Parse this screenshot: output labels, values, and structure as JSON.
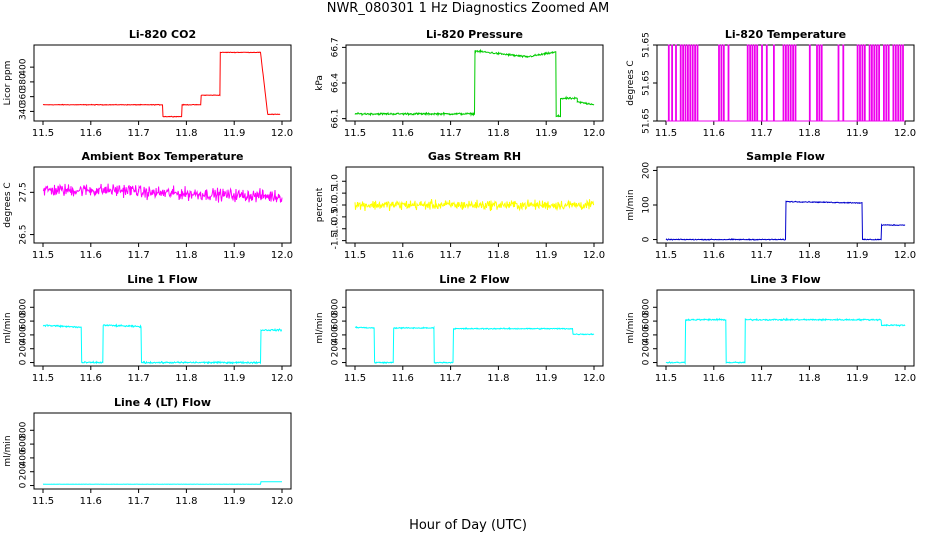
{
  "title": "NWR_080301  1 Hz Diagnostics Zoomed AM",
  "xlabel": "Hour of Day (UTC)",
  "chart_data": [
    {
      "type": "line",
      "title": "Li-820 CO2",
      "ylabel": "Licor ppm",
      "color": "#ff0000",
      "xlim": [
        11.5,
        12.0
      ],
      "xticks": [
        11.5,
        11.6,
        11.7,
        11.8,
        11.9,
        12.0
      ],
      "xtick_labels": [
        "11.5",
        "11.6",
        "11.7",
        "11.8",
        "11.9",
        "12.0"
      ],
      "ylim": [
        327,
        430
      ],
      "yticks": [
        340,
        360,
        380,
        400
      ],
      "ytick_labels": [
        "340",
        "360",
        "380",
        "400"
      ],
      "noise": 0.6,
      "segments": [
        {
          "x": [
            11.5,
            11.75
          ],
          "y": [
            349,
            349
          ]
        },
        {
          "x": [
            11.751,
            11.79
          ],
          "y": [
            333,
            333
          ]
        },
        {
          "x": [
            11.791,
            11.83
          ],
          "y": [
            349,
            349
          ]
        },
        {
          "x": [
            11.831,
            11.87
          ],
          "y": [
            362,
            362
          ]
        },
        {
          "x": [
            11.871,
            11.955
          ],
          "y": [
            420,
            420
          ]
        },
        {
          "x": [
            11.955,
            11.97
          ],
          "y": [
            420,
            337
          ]
        },
        {
          "x": [
            11.97,
            11.996
          ],
          "y": [
            336,
            336
          ]
        }
      ]
    },
    {
      "type": "line",
      "title": "Li-820 Pressure",
      "ylabel": "kPa",
      "color": "#00cc00",
      "xlim": [
        11.5,
        12.0
      ],
      "xticks": [
        11.5,
        11.6,
        11.7,
        11.8,
        11.9,
        12.0
      ],
      "xtick_labels": [
        "11.5",
        "11.6",
        "11.7",
        "11.8",
        "11.9",
        "12.0"
      ],
      "ylim": [
        66.08,
        66.72
      ],
      "yticks": [
        66.1,
        66.4,
        66.7
      ],
      "ytick_labels": [
        "66.1",
        "66.4",
        "66.7"
      ],
      "noise": 0.012,
      "segments": [
        {
          "x": [
            11.5,
            11.75
          ],
          "y": [
            66.14,
            66.14
          ]
        },
        {
          "x": [
            11.751,
            11.86
          ],
          "y": [
            66.67,
            66.62
          ]
        },
        {
          "x": [
            11.86,
            11.92
          ],
          "y": [
            66.62,
            66.66
          ]
        },
        {
          "x": [
            11.921,
            11.93
          ],
          "y": [
            66.12,
            66.12
          ]
        },
        {
          "x": [
            11.93,
            11.965
          ],
          "y": [
            66.27,
            66.27
          ]
        },
        {
          "x": [
            11.965,
            12.0
          ],
          "y": [
            66.24,
            66.22
          ]
        }
      ]
    },
    {
      "type": "line",
      "title": "Li-820 Temperature",
      "ylabel": "degrees C",
      "color": "#ee00ee",
      "xlim": [
        11.5,
        12.0
      ],
      "xticks": [
        11.5,
        11.6,
        11.7,
        11.8,
        11.9,
        12.0
      ],
      "xtick_labels": [
        "11.5",
        "11.6",
        "11.7",
        "11.8",
        "11.9",
        "12.0"
      ],
      "ylim": [
        51.6498,
        51.6502
      ],
      "yticks": [
        51.6498,
        51.65,
        51.6502
      ],
      "ytick_labels": [
        "51.65",
        "51.65",
        "51.65"
      ],
      "baseline": 51.6498,
      "spike_value": 51.6502,
      "spikes": [
        11.505,
        11.512,
        11.52,
        11.53,
        11.535,
        11.54,
        11.545,
        11.55,
        11.555,
        11.56,
        11.565,
        11.61,
        11.615,
        11.62,
        11.63,
        11.67,
        11.675,
        11.68,
        11.685,
        11.69,
        11.7,
        11.71,
        11.725,
        11.745,
        11.75,
        11.755,
        11.76,
        11.765,
        11.77,
        11.8,
        11.815,
        11.82,
        11.825,
        11.86,
        11.87,
        11.9,
        11.905,
        11.91,
        11.915,
        11.925,
        11.93,
        11.935,
        11.94,
        11.945,
        11.955,
        11.96,
        11.965,
        11.975,
        11.98,
        11.985,
        11.99,
        11.995
      ]
    },
    {
      "type": "line",
      "title": "Ambient Box Temperature",
      "ylabel": "degrees C",
      "color": "#ff00ff",
      "xlim": [
        11.5,
        12.0
      ],
      "xticks": [
        11.5,
        11.6,
        11.7,
        11.8,
        11.9,
        12.0
      ],
      "xtick_labels": [
        "11.5",
        "11.6",
        "11.7",
        "11.8",
        "11.9",
        "12.0"
      ],
      "ylim": [
        26.3,
        28.1
      ],
      "yticks": [
        26.5,
        27.5
      ],
      "ytick_labels": [
        "26.5",
        "27.5"
      ],
      "noise": 0.22,
      "segments": [
        {
          "x": [
            11.5,
            11.7
          ],
          "y": [
            27.55,
            27.55
          ]
        },
        {
          "x": [
            11.7,
            12.0
          ],
          "y": [
            27.5,
            27.4
          ]
        }
      ]
    },
    {
      "type": "line",
      "title": "Gas Stream RH",
      "ylabel": "percent",
      "color": "#ffff00",
      "xlim": [
        11.5,
        12.0
      ],
      "xticks": [
        11.5,
        11.6,
        11.7,
        11.8,
        11.9,
        12.0
      ],
      "xtick_labels": [
        "11.5",
        "11.6",
        "11.7",
        "11.8",
        "11.9",
        "12.0"
      ],
      "ylim": [
        -1.6,
        1.6
      ],
      "yticks": [
        -1.5,
        -1.0,
        -0.5,
        0.0,
        0.5,
        1.0
      ],
      "ytick_labels": [
        "-1.5",
        "-1.0",
        "-0.5",
        "0.0",
        "0.5",
        "1.0"
      ],
      "noise": 0.3,
      "segments": [
        {
          "x": [
            11.5,
            12.0
          ],
          "y": [
            0.0,
            0.0
          ]
        }
      ]
    },
    {
      "type": "line",
      "title": "Sample Flow",
      "ylabel": "ml/min",
      "color": "#0000cc",
      "xlim": [
        11.5,
        12.0
      ],
      "xticks": [
        11.5,
        11.6,
        11.7,
        11.8,
        11.9,
        12.0
      ],
      "xtick_labels": [
        "11.5",
        "11.6",
        "11.7",
        "11.8",
        "11.9",
        "12.0"
      ],
      "ylim": [
        -10,
        210
      ],
      "yticks": [
        0,
        100,
        200
      ],
      "ytick_labels": [
        "0",
        "100",
        "200"
      ],
      "noise": 2,
      "segments": [
        {
          "x": [
            11.5,
            11.75
          ],
          "y": [
            0,
            0
          ]
        },
        {
          "x": [
            11.751,
            11.91
          ],
          "y": [
            110,
            106
          ]
        },
        {
          "x": [
            11.911,
            11.95
          ],
          "y": [
            0,
            0
          ]
        },
        {
          "x": [
            11.951,
            12.0
          ],
          "y": [
            42,
            42
          ]
        }
      ]
    },
    {
      "type": "line",
      "title": "Line 1 Flow",
      "ylabel": "ml/min",
      "color": "#00ffff",
      "xlim": [
        11.5,
        12.0
      ],
      "xticks": [
        11.5,
        11.6,
        11.7,
        11.8,
        11.9,
        12.0
      ],
      "xtick_labels": [
        "11.5",
        "11.6",
        "11.7",
        "11.8",
        "11.9",
        "12.0"
      ],
      "ylim": [
        -50,
        1050
      ],
      "yticks": [
        0,
        200,
        400,
        600,
        800
      ],
      "ytick_labels": [
        "0",
        "200",
        "400",
        "600",
        "800"
      ],
      "noise": 18,
      "segments": [
        {
          "x": [
            11.5,
            11.58
          ],
          "y": [
            540,
            510
          ]
        },
        {
          "x": [
            11.581,
            11.625
          ],
          "y": [
            0,
            0
          ]
        },
        {
          "x": [
            11.626,
            11.705
          ],
          "y": [
            540,
            520
          ]
        },
        {
          "x": [
            11.706,
            11.955
          ],
          "y": [
            0,
            0
          ]
        },
        {
          "x": [
            11.956,
            12.0
          ],
          "y": [
            470,
            470
          ]
        }
      ]
    },
    {
      "type": "line",
      "title": "Line 2 Flow",
      "ylabel": "ml/min",
      "color": "#00ffff",
      "xlim": [
        11.5,
        12.0
      ],
      "xticks": [
        11.5,
        11.6,
        11.7,
        11.8,
        11.9,
        12.0
      ],
      "xtick_labels": [
        "11.5",
        "11.6",
        "11.7",
        "11.8",
        "11.9",
        "12.0"
      ],
      "ylim": [
        -50,
        1050
      ],
      "yticks": [
        0,
        200,
        400,
        600,
        800
      ],
      "ytick_labels": [
        "0",
        "200",
        "400",
        "600",
        "800"
      ],
      "noise": 12,
      "segments": [
        {
          "x": [
            11.5,
            11.54
          ],
          "y": [
            510,
            500
          ]
        },
        {
          "x": [
            11.541,
            11.58
          ],
          "y": [
            0,
            0
          ]
        },
        {
          "x": [
            11.581,
            11.665
          ],
          "y": [
            500,
            500
          ]
        },
        {
          "x": [
            11.666,
            11.705
          ],
          "y": [
            0,
            0
          ]
        },
        {
          "x": [
            11.706,
            11.955
          ],
          "y": [
            490,
            490
          ]
        },
        {
          "x": [
            11.956,
            12.0
          ],
          "y": [
            410,
            410
          ]
        }
      ]
    },
    {
      "type": "line",
      "title": "Line 3 Flow",
      "ylabel": "ml/min",
      "color": "#00ffff",
      "xlim": [
        11.5,
        12.0
      ],
      "xticks": [
        11.5,
        11.6,
        11.7,
        11.8,
        11.9,
        12.0
      ],
      "xtick_labels": [
        "11.5",
        "11.6",
        "11.7",
        "11.8",
        "11.9",
        "12.0"
      ],
      "ylim": [
        -50,
        1050
      ],
      "yticks": [
        0,
        200,
        400,
        600,
        800
      ],
      "ytick_labels": [
        "0",
        "200",
        "400",
        "600",
        "800"
      ],
      "noise": 16,
      "segments": [
        {
          "x": [
            11.5,
            11.54
          ],
          "y": [
            0,
            0
          ]
        },
        {
          "x": [
            11.541,
            11.625
          ],
          "y": [
            620,
            620
          ]
        },
        {
          "x": [
            11.626,
            11.665
          ],
          "y": [
            0,
            0
          ]
        },
        {
          "x": [
            11.666,
            11.95
          ],
          "y": [
            620,
            620
          ]
        },
        {
          "x": [
            11.951,
            12.0
          ],
          "y": [
            540,
            540
          ]
        }
      ]
    },
    {
      "type": "line",
      "title": "Line 4 (LT) Flow",
      "ylabel": "ml/min",
      "color": "#00ffff",
      "xlim": [
        11.5,
        12.0
      ],
      "xticks": [
        11.5,
        11.6,
        11.7,
        11.8,
        11.9,
        12.0
      ],
      "xtick_labels": [
        "11.5",
        "11.6",
        "11.7",
        "11.8",
        "11.9",
        "12.0"
      ],
      "ylim": [
        -50,
        1050
      ],
      "yticks": [
        0,
        200,
        400,
        600,
        800
      ],
      "ytick_labels": [
        "0",
        "200",
        "400",
        "600",
        "800"
      ],
      "noise": 1.5,
      "segments": [
        {
          "x": [
            11.5,
            11.955
          ],
          "y": [
            20,
            20
          ]
        },
        {
          "x": [
            11.956,
            12.0
          ],
          "y": [
            55,
            55
          ]
        }
      ]
    }
  ]
}
